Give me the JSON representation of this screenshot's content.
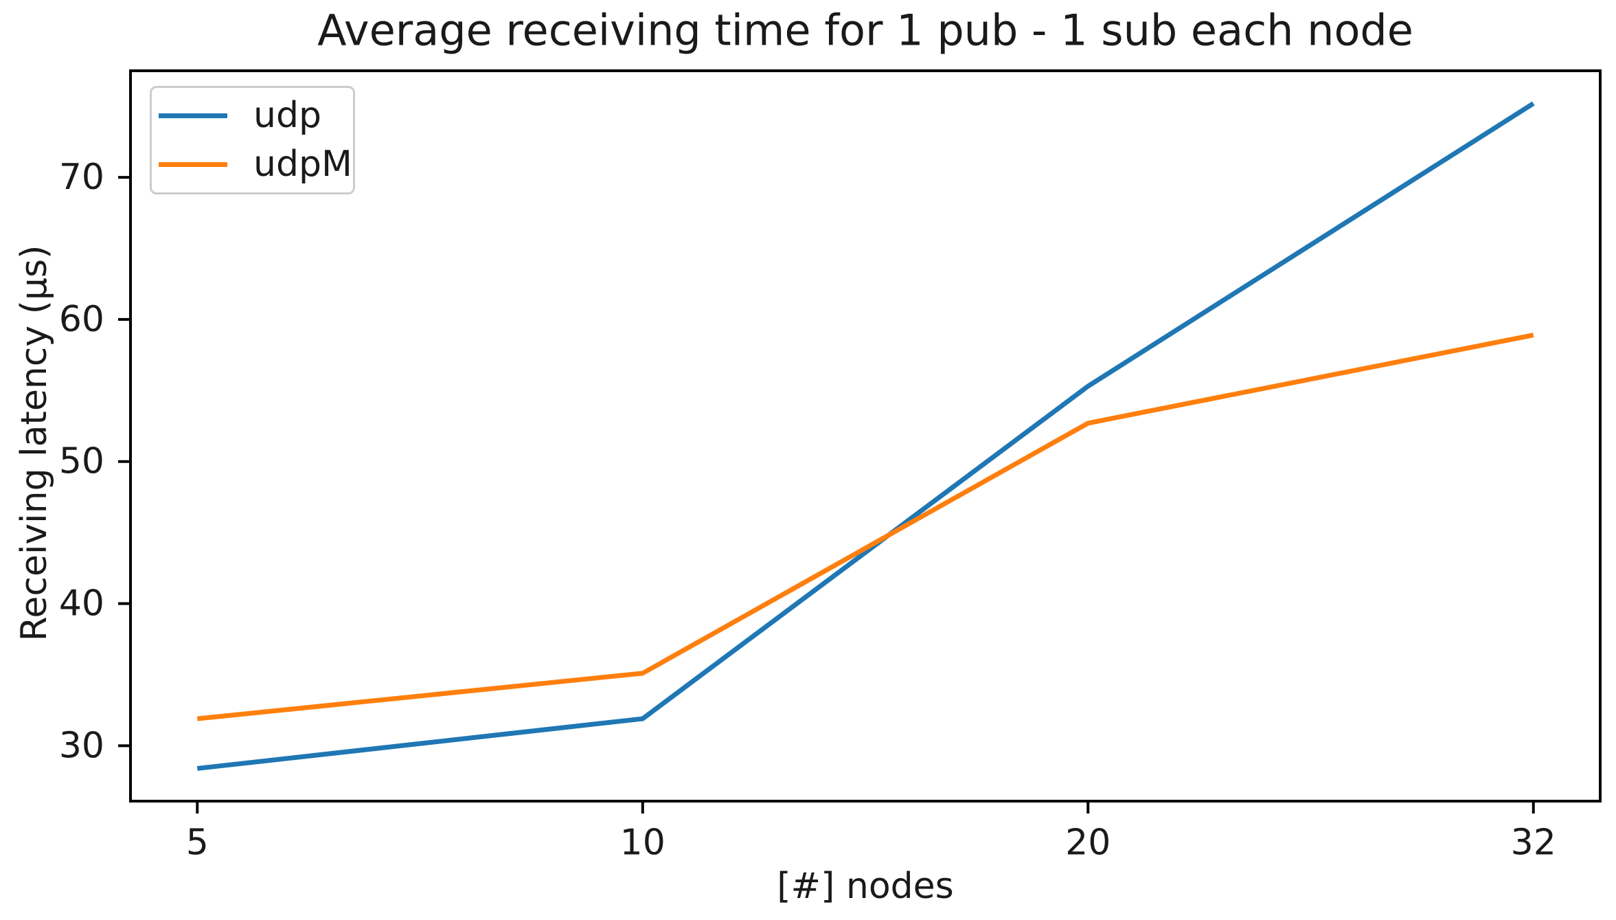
{
  "chart_data": {
    "type": "line",
    "title": "Average receiving time for 1 pub - 1 sub each node",
    "xlabel": "[#] nodes",
    "ylabel": "Receiving latency (µs)",
    "categories": [
      "5",
      "10",
      "20",
      "32"
    ],
    "x_values": [
      5,
      10,
      20,
      32
    ],
    "x_spacing": "equidistant",
    "series": [
      {
        "name": "udp",
        "color": "#1f77b4",
        "values": [
          28.4,
          31.9,
          55.3,
          75.2
        ]
      },
      {
        "name": "udpM",
        "color": "#ff7f0e",
        "values": [
          31.9,
          35.1,
          52.7,
          58.9
        ]
      }
    ],
    "yticks": [
      30,
      40,
      50,
      60,
      70
    ],
    "ylim": [
      26.1,
      77.5
    ],
    "xlim_index": [
      -0.15,
      3.15
    ],
    "grid": false,
    "legend_position": "upper left",
    "colors": {
      "background": "#ffffff",
      "spine": "#000000",
      "text": "#1a1a1a",
      "legend_border": "#cccccc"
    }
  }
}
